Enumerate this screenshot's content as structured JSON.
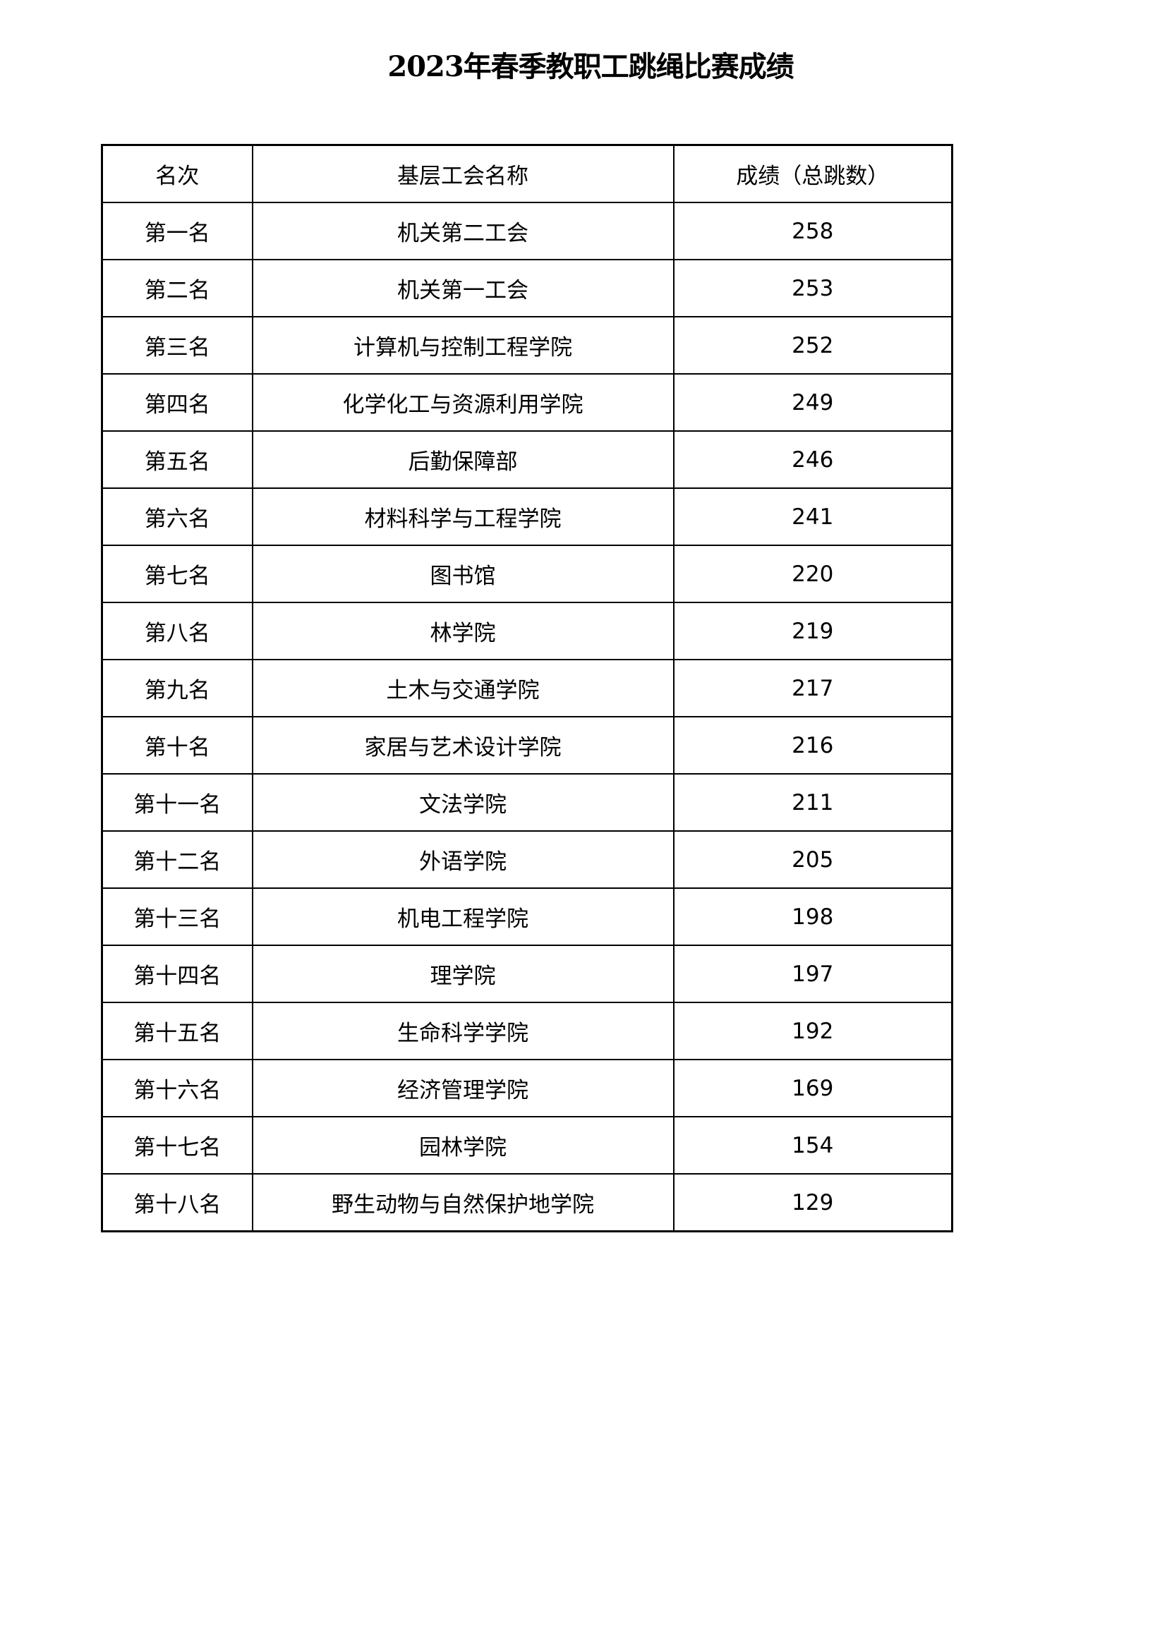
{
  "title": "2023年春季教职工跳绳比赛成绩",
  "table": {
    "headers": [
      "名次",
      "基层工会名称",
      "成绩（总跳数）"
    ],
    "rows": [
      [
        "第一名",
        "机关第二工会",
        "258"
      ],
      [
        "第二名",
        "机关第一工会",
        "253"
      ],
      [
        "第三名",
        "计算机与控制工程学院",
        "252"
      ],
      [
        "第四名",
        "化学化工与资源利用学院",
        "249"
      ],
      [
        "第五名",
        "后勤保障部",
        "246"
      ],
      [
        "第六名",
        "材料科学与工程学院",
        "241"
      ],
      [
        "第七名",
        "图书馆",
        "220"
      ],
      [
        "第八名",
        "林学院",
        "219"
      ],
      [
        "第九名",
        "土木与交通学院",
        "217"
      ],
      [
        "第十名",
        "家居与艺术设计学院",
        "216"
      ],
      [
        "第十一名",
        "文法学院",
        "211"
      ],
      [
        "第十二名",
        "外语学院",
        "205"
      ],
      [
        "第十三名",
        "机电工程学院",
        "198"
      ],
      [
        "第十四名",
        "理学院",
        "197"
      ],
      [
        "第十五名",
        "生命科学学院",
        "192"
      ],
      [
        "第十六名",
        "经济管理学院",
        "169"
      ],
      [
        "第十七名",
        "园林学院",
        "154"
      ],
      [
        "第十八名",
        "野生动物与自然保护地学院",
        "129"
      ]
    ]
  }
}
